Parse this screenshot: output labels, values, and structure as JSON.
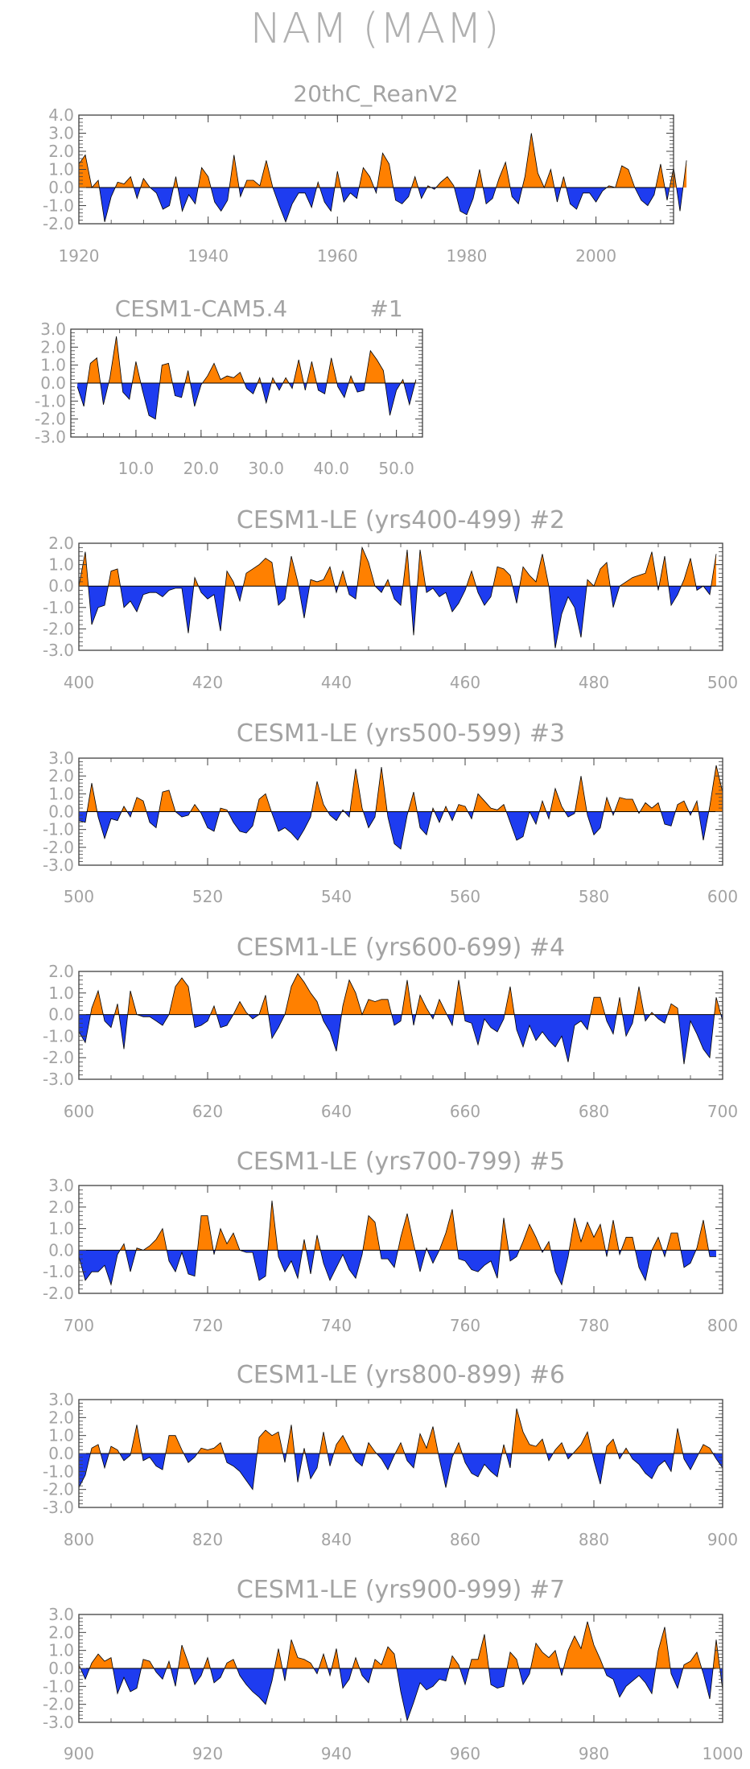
{
  "title": "NAM (MAM)",
  "colors": {
    "positive": "#ff8000",
    "negative": "#1e3cf0",
    "axis": "#404040",
    "text": "#a3a3a3"
  },
  "chart_data": [
    {
      "type": "area",
      "title": "20thC_ReanV2",
      "subtitle": "",
      "xlim": [
        1920,
        2012
      ],
      "ylim": [
        -2.0,
        4.0
      ],
      "xticks": [
        "1920",
        "1940",
        "1960",
        "1980",
        "2000"
      ],
      "yticks": [
        "4.0",
        "3.0",
        "2.0",
        "1.0",
        "0.0",
        "-1.0",
        "-2.0"
      ],
      "x_start": 1920,
      "values": [
        1.3,
        1.8,
        0.0,
        0.4,
        -1.9,
        -0.5,
        0.3,
        0.2,
        0.6,
        -0.6,
        0.5,
        0.0,
        -0.3,
        -1.2,
        -1.0,
        0.6,
        -1.3,
        -0.4,
        -0.9,
        1.1,
        0.6,
        -0.8,
        -1.3,
        -0.7,
        1.8,
        -0.5,
        0.4,
        0.4,
        0.1,
        1.5,
        0.0,
        -1.0,
        -1.9,
        -0.9,
        -0.3,
        -0.3,
        -1.1,
        0.3,
        -0.8,
        -1.3,
        0.9,
        -0.8,
        -0.3,
        -0.6,
        1.1,
        0.6,
        -0.3,
        1.9,
        1.3,
        -0.7,
        -0.9,
        -0.5,
        0.6,
        -0.6,
        0.1,
        -0.1,
        0.3,
        0.6,
        0.1,
        -1.3,
        -1.5,
        -0.6,
        1.0,
        -0.9,
        -0.6,
        0.5,
        1.4,
        -0.5,
        -0.9,
        0.6,
        3.0,
        0.8,
        0.0,
        1.0,
        -0.8,
        0.6,
        -0.9,
        -1.2,
        -0.3,
        -0.3,
        -0.8,
        -0.2,
        0.1,
        0.0,
        1.2,
        1.0,
        0.0,
        -0.7,
        -1.0,
        -0.4,
        1.3,
        -0.7,
        1.1,
        -1.3,
        1.5
      ]
    },
    {
      "type": "area",
      "title": "CESM1-CAM5.4",
      "subtitle": "#1",
      "xlim": [
        0,
        54
      ],
      "ylim": [
        -3.0,
        3.0
      ],
      "xticks": [
        "10.0",
        "20.0",
        "30.0",
        "40.0",
        "50.0"
      ],
      "yticks": [
        "3.0",
        "2.0",
        "1.0",
        "0.0",
        "-1.0",
        "-2.0",
        "-3.0"
      ],
      "x_start": 1,
      "values": [
        -0.2,
        -1.3,
        1.1,
        1.4,
        -1.2,
        0.3,
        2.6,
        -0.5,
        -0.9,
        1.2,
        -0.4,
        -1.8,
        -2.0,
        1.0,
        1.1,
        -0.7,
        -0.8,
        0.7,
        -1.3,
        -0.1,
        0.4,
        1.1,
        0.2,
        0.4,
        0.3,
        0.6,
        -0.3,
        -0.6,
        0.3,
        -1.1,
        0.3,
        -0.4,
        0.3,
        -0.3,
        1.3,
        -0.4,
        1.2,
        -0.4,
        -0.6,
        1.4,
        -0.2,
        -0.8,
        0.4,
        -0.5,
        -0.4,
        1.8,
        1.3,
        0.7,
        -1.8,
        -0.4,
        0.2,
        -1.2,
        0.2
      ]
    },
    {
      "type": "area",
      "title": "CESM1-LE (yrs400-499)",
      "subtitle": "#2",
      "xlim": [
        400,
        500
      ],
      "ylim": [
        -3.0,
        2.0
      ],
      "xticks": [
        "400",
        "420",
        "440",
        "460",
        "480",
        "500"
      ],
      "yticks": [
        "2.0",
        "1.0",
        "0.0",
        "-1.0",
        "-2.0",
        "-3.0"
      ],
      "x_start": 400,
      "values": [
        0.0,
        1.6,
        -1.8,
        -1.0,
        -0.9,
        0.7,
        0.8,
        -1.0,
        -0.7,
        -1.2,
        -0.4,
        -0.3,
        -0.3,
        -0.5,
        -0.2,
        -0.1,
        -0.1,
        -2.2,
        0.4,
        -0.3,
        -0.6,
        -0.4,
        -2.1,
        0.7,
        0.2,
        -0.7,
        0.6,
        0.8,
        1.0,
        1.3,
        1.1,
        -0.9,
        -0.6,
        1.4,
        0.2,
        -1.5,
        0.3,
        0.2,
        0.3,
        0.9,
        -0.3,
        0.7,
        -0.4,
        -0.6,
        1.8,
        1.1,
        0.0,
        -0.3,
        0.3,
        -0.6,
        -0.9,
        1.7,
        -2.3,
        1.7,
        -0.3,
        -0.1,
        -0.5,
        -0.3,
        -1.2,
        -0.8,
        -0.2,
        0.7,
        -0.3,
        -0.9,
        -0.5,
        0.9,
        0.8,
        0.5,
        -0.8,
        0.9,
        0.5,
        0.2,
        1.5,
        0.0,
        -2.9,
        -1.3,
        -0.5,
        -1.0,
        -2.4,
        0.3,
        0.0,
        0.8,
        1.1,
        -1.0,
        0.0,
        0.2,
        0.4,
        0.5,
        0.6,
        1.6,
        -0.2,
        1.4,
        -0.9,
        -0.4,
        0.3,
        1.3,
        -0.2,
        0.0,
        -0.4,
        1.5
      ]
    },
    {
      "type": "area",
      "title": "CESM1-LE (yrs500-599)",
      "subtitle": "#3",
      "xlim": [
        500,
        600
      ],
      "ylim": [
        -3.0,
        3.0
      ],
      "xticks": [
        "500",
        "520",
        "540",
        "560",
        "580",
        "600"
      ],
      "yticks": [
        "3.0",
        "2.0",
        "1.0",
        "0.0",
        "-1.0",
        "-2.0",
        "-3.0"
      ],
      "x_start": 500,
      "values": [
        -0.5,
        -0.6,
        1.6,
        -0.3,
        -1.5,
        -0.4,
        -0.5,
        0.3,
        -0.3,
        0.8,
        0.6,
        -0.6,
        -0.9,
        1.1,
        1.2,
        0.0,
        -0.3,
        -0.2,
        0.4,
        -0.1,
        -0.9,
        -1.1,
        0.2,
        0.1,
        -0.6,
        -1.1,
        -1.2,
        -0.8,
        0.7,
        1.0,
        -0.1,
        -1.1,
        -0.9,
        -1.2,
        -1.6,
        -1.0,
        -0.3,
        1.7,
        0.4,
        -0.2,
        -0.5,
        0.1,
        -0.3,
        2.4,
        0.2,
        -0.9,
        -0.3,
        2.5,
        -0.3,
        -1.8,
        -2.1,
        -0.2,
        1.1,
        -0.9,
        -1.3,
        0.2,
        -0.6,
        0.3,
        -0.5,
        0.4,
        0.3,
        -0.4,
        1.0,
        0.6,
        0.2,
        0.1,
        0.4,
        -0.6,
        -1.6,
        -1.4,
        0.0,
        -0.7,
        0.6,
        -0.4,
        1.3,
        0.3,
        -0.3,
        -0.1,
        2.0,
        -0.2,
        -1.3,
        -0.9,
        0.8,
        -0.2,
        0.8,
        0.7,
        0.7,
        -0.1,
        0.5,
        0.2,
        0.5,
        -0.7,
        -0.8,
        0.4,
        0.6,
        -0.2,
        0.6,
        -1.6,
        0.3,
        2.6,
        1.1
      ]
    },
    {
      "type": "area",
      "title": "CESM1-LE (yrs600-699)",
      "subtitle": "#4",
      "xlim": [
        600,
        700
      ],
      "ylim": [
        -3.0,
        2.0
      ],
      "xticks": [
        "600",
        "620",
        "640",
        "660",
        "680",
        "700"
      ],
      "yticks": [
        "2.0",
        "1.0",
        "0.0",
        "-1.0",
        "-2.0",
        "-3.0"
      ],
      "x_start": 600,
      "values": [
        -0.8,
        -1.3,
        0.3,
        1.1,
        -0.3,
        -0.6,
        0.5,
        -1.6,
        1.1,
        0.0,
        -0.1,
        -0.1,
        -0.3,
        -0.5,
        0.0,
        1.3,
        1.7,
        1.3,
        -0.6,
        -0.5,
        -0.3,
        0.4,
        -0.6,
        -0.5,
        0.0,
        0.6,
        0.1,
        -0.2,
        0.0,
        0.9,
        -1.1,
        -0.6,
        0.0,
        1.3,
        1.9,
        1.5,
        1.0,
        0.6,
        -0.3,
        -0.8,
        -1.7,
        0.4,
        1.6,
        1.0,
        0.0,
        0.7,
        0.6,
        0.7,
        0.7,
        -0.5,
        -0.3,
        1.6,
        -0.5,
        0.9,
        0.3,
        -0.2,
        0.7,
        0.1,
        -0.5,
        1.6,
        -0.3,
        -0.4,
        -1.4,
        -0.2,
        -0.6,
        -0.8,
        -0.2,
        1.3,
        -0.7,
        -1.5,
        -0.5,
        -1.2,
        -0.8,
        -1.2,
        -1.5,
        -1.0,
        -2.2,
        -0.5,
        -0.3,
        -0.7,
        0.8,
        0.8,
        -0.3,
        -0.9,
        0.8,
        -1.0,
        -0.4,
        1.3,
        -0.3,
        0.1,
        -0.2,
        -0.4,
        0.5,
        0.3,
        -2.3,
        -0.3,
        -0.9,
        -1.6,
        -2.0,
        0.8,
        -0.3
      ]
    },
    {
      "type": "area",
      "title": "CESM1-LE (yrs700-799)",
      "subtitle": "#5",
      "xlim": [
        700,
        800
      ],
      "ylim": [
        -2.0,
        3.0
      ],
      "xticks": [
        "700",
        "720",
        "740",
        "760",
        "780",
        "800"
      ],
      "yticks": [
        "3.0",
        "2.0",
        "1.0",
        "0.0",
        "-1.0",
        "-2.0"
      ],
      "x_start": 700,
      "values": [
        -0.3,
        -1.4,
        -1.0,
        -1.0,
        -0.7,
        -1.6,
        -0.2,
        0.3,
        -1.0,
        0.1,
        0.0,
        0.2,
        0.5,
        1.0,
        -0.5,
        -1.0,
        -0.1,
        -1.1,
        -1.2,
        1.6,
        1.6,
        -0.2,
        1.0,
        0.3,
        0.8,
        0.0,
        -0.1,
        -0.1,
        -1.4,
        -1.2,
        2.3,
        -0.3,
        -1.0,
        -0.5,
        -1.3,
        0.5,
        -1.1,
        0.7,
        -0.6,
        -1.4,
        -0.8,
        -0.2,
        -0.9,
        -1.3,
        -0.2,
        1.6,
        1.3,
        -0.4,
        -0.4,
        -0.8,
        0.6,
        1.7,
        0.3,
        -1.0,
        0.1,
        -0.6,
        0.0,
        0.8,
        1.9,
        -0.4,
        -0.5,
        -0.9,
        -1.0,
        -0.7,
        -0.5,
        -1.3,
        1.5,
        -0.5,
        -0.3,
        0.4,
        1.2,
        0.6,
        -0.1,
        0.4,
        -1.0,
        -1.6,
        -0.3,
        1.5,
        0.4,
        1.3,
        0.6,
        1.2,
        -0.3,
        1.4,
        -0.2,
        0.6,
        0.6,
        -0.8,
        -1.4,
        0.0,
        0.6,
        -0.3,
        0.8,
        0.8,
        -0.8,
        -0.6,
        0.1,
        1.4,
        -0.3,
        -0.3
      ]
    },
    {
      "type": "area",
      "title": "CESM1-LE (yrs800-899)",
      "subtitle": "#6",
      "xlim": [
        800,
        900
      ],
      "ylim": [
        -3.0,
        3.0
      ],
      "xticks": [
        "800",
        "820",
        "840",
        "860",
        "880",
        "900"
      ],
      "yticks": [
        "3.0",
        "2.0",
        "1.0",
        "0.0",
        "-1.0",
        "-2.0",
        "-3.0"
      ],
      "x_start": 800,
      "values": [
        -1.9,
        -1.2,
        0.3,
        0.5,
        -0.8,
        0.4,
        0.2,
        -0.4,
        -0.1,
        1.6,
        -0.4,
        -0.2,
        -0.7,
        -0.9,
        1.0,
        1.0,
        0.2,
        -0.5,
        -0.2,
        0.3,
        0.2,
        0.3,
        0.6,
        -0.5,
        -0.7,
        -1.0,
        -1.5,
        -2.0,
        0.9,
        1.3,
        1.0,
        1.2,
        -0.5,
        1.6,
        -1.6,
        0.3,
        -1.4,
        -0.8,
        1.2,
        -0.7,
        0.5,
        1.0,
        0.3,
        -0.4,
        -0.7,
        0.6,
        0.1,
        -0.3,
        -0.9,
        -0.1,
        0.6,
        -0.4,
        -0.8,
        1.1,
        0.3,
        1.5,
        -0.3,
        -1.9,
        -0.2,
        0.6,
        -0.5,
        -1.1,
        -1.3,
        -0.6,
        -1.0,
        -1.3,
        0.5,
        -0.8,
        2.5,
        1.2,
        0.5,
        0.4,
        0.8,
        -0.4,
        0.2,
        0.6,
        -0.3,
        0.1,
        0.5,
        1.2,
        -0.4,
        -1.7,
        0.4,
        0.8,
        -0.3,
        0.3,
        -0.3,
        -0.6,
        -1.1,
        -1.4,
        -0.7,
        -0.4,
        -1.0,
        1.4,
        -0.3,
        -0.9,
        -0.2,
        0.5,
        0.3,
        -0.3,
        -0.8
      ]
    },
    {
      "type": "area",
      "title": "CESM1-LE (yrs900-999)",
      "subtitle": "#7",
      "xlim": [
        900,
        1000
      ],
      "ylim": [
        -3.0,
        3.0
      ],
      "xticks": [
        "900",
        "920",
        "940",
        "960",
        "980",
        "1000"
      ],
      "yticks": [
        "3.0",
        "2.0",
        "1.0",
        "0.0",
        "-1.0",
        "-2.0",
        "-3.0"
      ],
      "x_start": 900,
      "values": [
        0.2,
        -0.6,
        0.3,
        0.8,
        0.4,
        0.6,
        -1.4,
        -0.5,
        -1.3,
        -1.1,
        0.5,
        0.4,
        -0.2,
        -0.6,
        0.4,
        -1.0,
        1.3,
        0.3,
        -0.9,
        -0.4,
        0.6,
        -0.8,
        -0.5,
        0.3,
        0.5,
        -0.4,
        -0.9,
        -1.3,
        -1.6,
        -2.0,
        -0.7,
        1.1,
        -0.7,
        1.6,
        0.6,
        0.5,
        0.3,
        -0.3,
        0.8,
        -0.4,
        1.1,
        -1.1,
        -0.6,
        0.6,
        -0.4,
        -0.8,
        0.5,
        0.2,
        1.2,
        0.8,
        -1.3,
        -2.9,
        -1.9,
        -0.8,
        -1.2,
        -1.0,
        -0.6,
        -0.7,
        0.7,
        0.2,
        -0.9,
        0.5,
        0.5,
        1.9,
        -0.9,
        -1.1,
        -1.0,
        0.9,
        0.5,
        -0.9,
        -0.3,
        1.4,
        0.9,
        0.6,
        1.0,
        -0.4,
        1.0,
        1.8,
        1.1,
        2.6,
        1.3,
        0.5,
        -0.4,
        -0.6,
        -1.6,
        -1.0,
        -0.7,
        -0.4,
        -0.8,
        -1.4,
        1.0,
        2.3,
        -0.3,
        -1.1,
        0.2,
        0.4,
        0.9,
        -0.3,
        -1.7,
        1.6,
        -1.2
      ]
    }
  ]
}
